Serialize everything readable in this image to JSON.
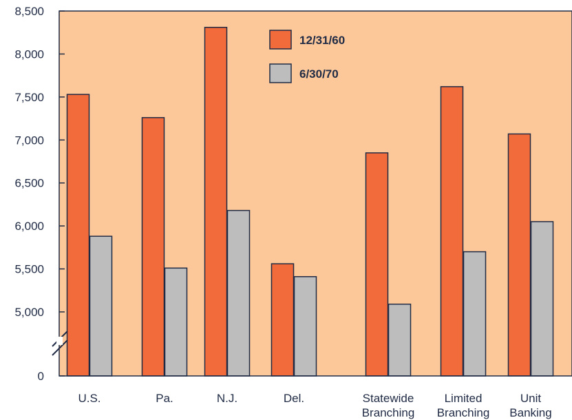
{
  "chart_data": {
    "type": "bar",
    "title": "",
    "xlabel": "",
    "ylabel": "",
    "categories": [
      "U.S.",
      "Pa.",
      "N.J.",
      "Del.",
      "Statewide Branching",
      "Limited Branching",
      "Unit Banking"
    ],
    "category_lines": [
      [
        "U.S."
      ],
      [
        "Pa."
      ],
      [
        "N.J."
      ],
      [
        "Del."
      ],
      [
        "Statewide",
        "Branching"
      ],
      [
        "Limited",
        "Branching"
      ],
      [
        "Unit",
        "Banking"
      ]
    ],
    "series": [
      {
        "name": "12/31/60",
        "color": "#f26b3a",
        "values": [
          7530,
          7260,
          8310,
          5560,
          6850,
          7620,
          7070
        ]
      },
      {
        "name": "6/30/70",
        "color": "#bdbdbd",
        "values": [
          5880,
          5510,
          6180,
          5410,
          5090,
          5700,
          6050
        ]
      }
    ],
    "ylim": [
      4750,
      8500
    ],
    "y_ticks": [
      5000,
      5500,
      6000,
      6500,
      7000,
      7500,
      8000,
      8500
    ],
    "y_tick_labels": [
      "5,000",
      "5,500",
      "6,000",
      "6,500",
      "7,000",
      "7,500",
      "8,000",
      "8,500"
    ],
    "y_zero_label": "0",
    "axis_break": true,
    "grid": false,
    "legend_position": "top-right",
    "plot_background": "#fcc89a",
    "axis_color": "#1f2a44"
  }
}
